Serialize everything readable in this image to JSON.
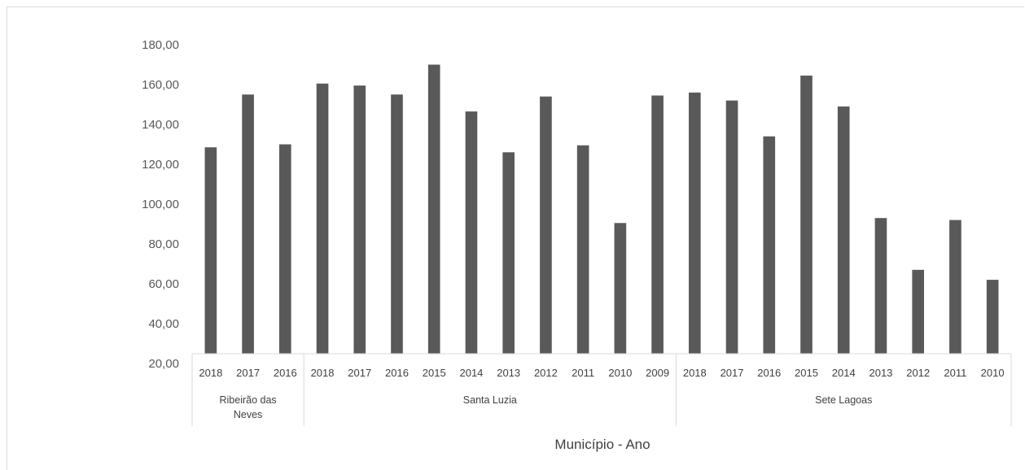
{
  "chart_data": {
    "type": "bar",
    "title": "",
    "xlabel": "Município - Ano",
    "ylabel": "",
    "ylim": [
      20,
      180
    ],
    "yticks": [
      "20,00",
      "40,00",
      "60,00",
      "80,00",
      "100,00",
      "120,00",
      "140,00",
      "160,00",
      "180,00"
    ],
    "bar_color": "#595959",
    "grid": false,
    "groups": [
      {
        "name": "Ribeirão das Neves",
        "lines": [
          "Ribeirão das",
          "Neves"
        ],
        "categories": [
          "2018",
          "2017",
          "2016"
        ],
        "values": [
          128.5,
          155,
          130
        ]
      },
      {
        "name": "Santa Luzia",
        "lines": [
          "Santa Luzia"
        ],
        "categories": [
          "2018",
          "2017",
          "2016",
          "2015",
          "2014",
          "2013",
          "2012",
          "2011",
          "2010",
          "2009"
        ],
        "values": [
          160.5,
          159.5,
          155,
          170,
          146.5,
          126,
          154,
          129.5,
          90.5,
          154.5
        ]
      },
      {
        "name": "Sete Lagoas",
        "lines": [
          "Sete Lagoas"
        ],
        "categories": [
          "2018",
          "2017",
          "2016",
          "2015",
          "2014",
          "2013",
          "2012",
          "2011",
          "2010"
        ],
        "values": [
          156,
          152,
          134,
          164.5,
          149,
          93,
          67,
          92,
          62
        ]
      }
    ]
  }
}
